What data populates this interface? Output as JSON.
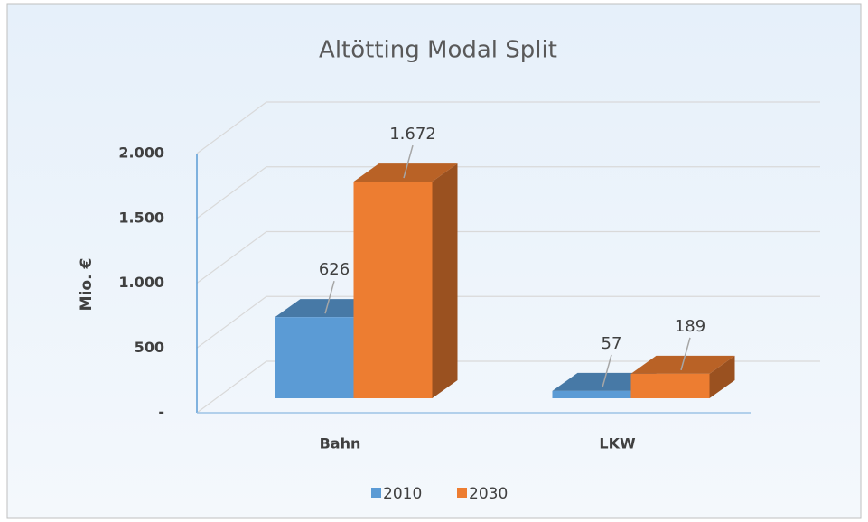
{
  "chart_data": {
    "type": "bar",
    "title": "Altötting Modal Split",
    "y_label": "Mio. €",
    "categories": [
      "Bahn",
      "LKW"
    ],
    "series": [
      {
        "name": "2010",
        "color": "#5b9bd5",
        "values": [
          626,
          57
        ]
      },
      {
        "name": "2030",
        "color": "#ed7d31",
        "values": [
          1672,
          189
        ],
        "value_labels": [
          "1.672",
          "189"
        ]
      }
    ],
    "ylim": [
      0,
      2000
    ],
    "yticks": [
      {
        "value": 0,
        "label": "-"
      },
      500,
      {
        "value": 1000,
        "label": "1.000"
      },
      {
        "value": 1500,
        "label": "1.500"
      },
      {
        "value": 2000,
        "label": "2.000"
      }
    ],
    "grid": true,
    "legend": "bottom"
  }
}
